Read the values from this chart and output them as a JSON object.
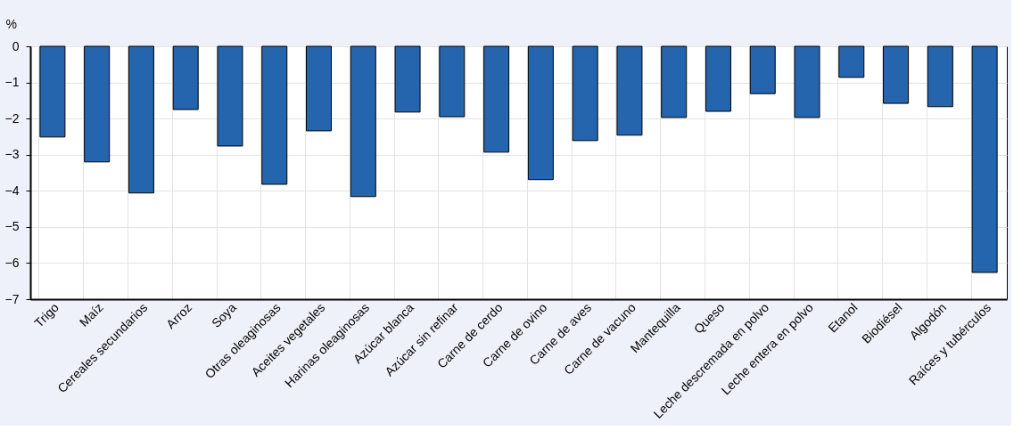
{
  "chart_data": {
    "type": "bar",
    "ylabel": "%",
    "categories": [
      "Trigo",
      "Maíz",
      "Cereales secundarios",
      "Arroz",
      "Soya",
      "Otras oleaginosas",
      "Aceites vegetales",
      "Harinas oleaginosas",
      "Azúcar blanca",
      "Azúcar sin refinar",
      "Carne de cerdo",
      "Carne de ovino",
      "Carne de aves",
      "Carne de vacuno",
      "Mantequilla",
      "Queso",
      "Leche descremada en polvo",
      "Leche entera en polvo",
      "Etanol",
      "Biodiésel",
      "Algodón",
      "Raíces y tubérculos"
    ],
    "values": [
      -2.51,
      -3.2,
      -4.06,
      -1.75,
      -2.76,
      -3.82,
      -2.34,
      -4.16,
      -1.82,
      -1.95,
      -2.93,
      -3.69,
      -2.61,
      -2.46,
      -1.97,
      -1.8,
      -1.31,
      -1.97,
      -0.86,
      -1.58,
      -1.67,
      -6.26
    ],
    "color": "#2565ae",
    "ylim": [
      -7,
      0
    ],
    "yticks": [
      -7,
      -6,
      -5,
      -4,
      -3,
      -2,
      -1,
      0
    ],
    "grid": true
  }
}
